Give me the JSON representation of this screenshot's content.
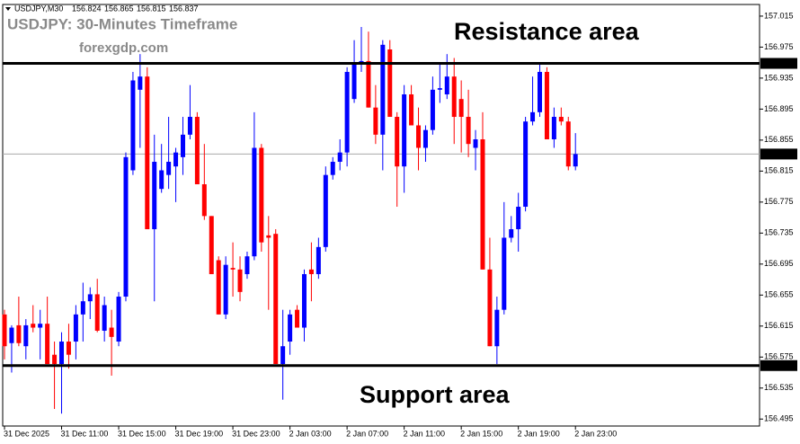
{
  "header": {
    "symbol": "USDJPY,M30",
    "ohlc": [
      156.824,
      156.865,
      156.815,
      156.837
    ]
  },
  "chart_data": {
    "type": "candlestick",
    "title": "USDJPY: 30-Minutes Timeframe",
    "subtitle": "forexgdp.com",
    "annotations": [
      "Resistance area",
      "Support area"
    ],
    "categories": [
      "31 Dec 2025",
      null,
      null,
      null,
      null,
      null,
      null,
      null,
      "31 Dec 11:00",
      null,
      null,
      null,
      null,
      null,
      null,
      null,
      "31 Dec 15:00",
      null,
      null,
      null,
      null,
      null,
      null,
      null,
      "31 Dec 19:00",
      null,
      null,
      null,
      null,
      null,
      null,
      null,
      "31 Dec 23:00",
      null,
      null,
      null,
      null,
      null,
      null,
      null,
      "2 Jan 03:00",
      null,
      null,
      null,
      null,
      null,
      null,
      null,
      "2 Jan 07:00",
      null,
      null,
      null,
      null,
      null,
      null,
      null,
      "2 Jan 11:00",
      null,
      null,
      null,
      null,
      null,
      null,
      null,
      "2 Jan 15:00",
      null,
      null,
      null,
      null,
      null,
      null,
      null,
      "2 Jan 19:00",
      null,
      null,
      null,
      null,
      null,
      null,
      null,
      "2 Jan 23:00"
    ],
    "open": [
      156.63,
      156.593,
      156.616,
      156.589,
      156.618,
      156.613,
      156.618,
      156.578,
      156.566,
      156.595,
      156.595,
      156.63,
      156.647,
      156.656,
      156.609,
      156.613,
      156.595,
      156.653,
      156.816,
      156.92,
      156.937,
      156.74,
      156.792,
      156.81,
      156.821,
      156.833,
      156.862,
      156.885,
      156.798,
      156.757,
      156.7,
      156.63,
      156.69,
      156.688,
      156.682,
      156.705,
      156.845,
      156.732,
      156.734,
      156.566,
      156.595,
      156.636,
      156.613,
      156.688,
      156.682,
      156.717,
      156.81,
      156.827,
      156.839,
      156.908,
      156.955,
      156.957,
      156.897,
      156.862,
      156.972,
      156.885,
      156.821,
      156.914,
      156.874,
      156.845,
      156.868,
      156.92,
      156.914,
      156.937,
      156.908,
      156.885,
      156.845,
      156.856,
      156.688,
      156.589,
      156.636,
      156.729,
      156.74,
      156.769,
      156.879,
      156.891,
      156.943,
      156.856,
      156.885,
      156.879,
      156.821
    ],
    "high": [
      156.636,
      156.616,
      156.653,
      156.624,
      156.642,
      156.636,
      156.653,
      156.595,
      156.607,
      156.618,
      156.642,
      156.671,
      156.665,
      156.676,
      156.653,
      156.636,
      156.659,
      156.839,
      156.943,
      156.966,
      156.949,
      156.862,
      156.85,
      156.885,
      156.845,
      156.885,
      156.926,
      156.891,
      156.85,
      156.757,
      156.705,
      156.705,
      156.723,
      156.705,
      156.711,
      156.891,
      156.85,
      156.757,
      156.74,
      156.636,
      156.636,
      156.642,
      156.688,
      156.723,
      156.729,
      156.821,
      156.833,
      156.856,
      156.949,
      156.984,
      157.001,
      156.995,
      156.926,
      156.984,
      156.984,
      156.891,
      156.926,
      156.926,
      156.897,
      156.874,
      156.937,
      156.955,
      156.966,
      156.961,
      156.932,
      156.92,
      156.868,
      156.891,
      156.729,
      156.653,
      156.775,
      156.757,
      156.787,
      156.885,
      156.937,
      156.955,
      156.949,
      156.897,
      156.897,
      156.885,
      156.864
    ],
    "low": [
      156.572,
      156.555,
      156.589,
      156.572,
      156.607,
      156.572,
      156.566,
      156.508,
      156.502,
      156.56,
      156.572,
      156.595,
      156.624,
      156.607,
      156.595,
      156.551,
      156.589,
      156.647,
      156.81,
      156.845,
      156.74,
      156.647,
      156.787,
      156.792,
      156.775,
      156.81,
      156.856,
      156.798,
      156.752,
      156.682,
      156.63,
      156.624,
      156.653,
      156.647,
      156.676,
      156.7,
      156.711,
      156.636,
      156.566,
      156.52,
      156.578,
      156.613,
      156.595,
      156.647,
      156.676,
      156.711,
      156.804,
      156.816,
      156.821,
      156.903,
      156.943,
      156.897,
      156.85,
      156.816,
      156.885,
      156.769,
      156.787,
      156.874,
      156.816,
      156.827,
      156.862,
      156.903,
      156.908,
      156.85,
      156.839,
      156.833,
      156.816,
      156.688,
      156.589,
      156.566,
      156.63,
      156.723,
      156.711,
      156.763,
      156.874,
      156.885,
      156.856,
      156.845,
      156.874,
      156.816,
      156.816
    ],
    "close": [
      156.589,
      156.613,
      156.593,
      156.616,
      156.613,
      156.618,
      156.566,
      156.566,
      156.595,
      156.578,
      156.63,
      156.647,
      156.656,
      156.609,
      156.642,
      156.601,
      156.653,
      156.833,
      156.932,
      156.937,
      156.74,
      156.827,
      156.816,
      156.827,
      156.839,
      156.862,
      156.885,
      156.798,
      156.757,
      156.682,
      156.63,
      156.694,
      156.688,
      156.659,
      156.705,
      156.845,
      156.723,
      156.729,
      156.566,
      156.589,
      156.63,
      156.613,
      156.682,
      156.682,
      156.717,
      156.81,
      156.827,
      156.839,
      156.943,
      156.955,
      156.957,
      156.897,
      156.862,
      156.978,
      156.885,
      156.821,
      156.914,
      156.874,
      156.845,
      156.868,
      156.92,
      156.922,
      156.937,
      156.885,
      156.885,
      156.85,
      156.856,
      156.688,
      156.589,
      156.636,
      156.729,
      156.74,
      156.769,
      156.879,
      156.891,
      156.943,
      156.856,
      156.885,
      156.879,
      156.821,
      156.837
    ],
    "up_color": "#0000ff",
    "down_color": "#ff0000",
    "ylim": [
      156.486,
      157.03
    ],
    "yticks": [
      157.015,
      156.975,
      156.935,
      156.895,
      156.855,
      156.815,
      156.775,
      156.735,
      156.695,
      156.655,
      156.615,
      156.575,
      156.535,
      156.495
    ],
    "levels": [
      156.954,
      156.564
    ],
    "level_color": "#000000",
    "current_price": 156.837,
    "current_color": "#a8a8a8"
  }
}
